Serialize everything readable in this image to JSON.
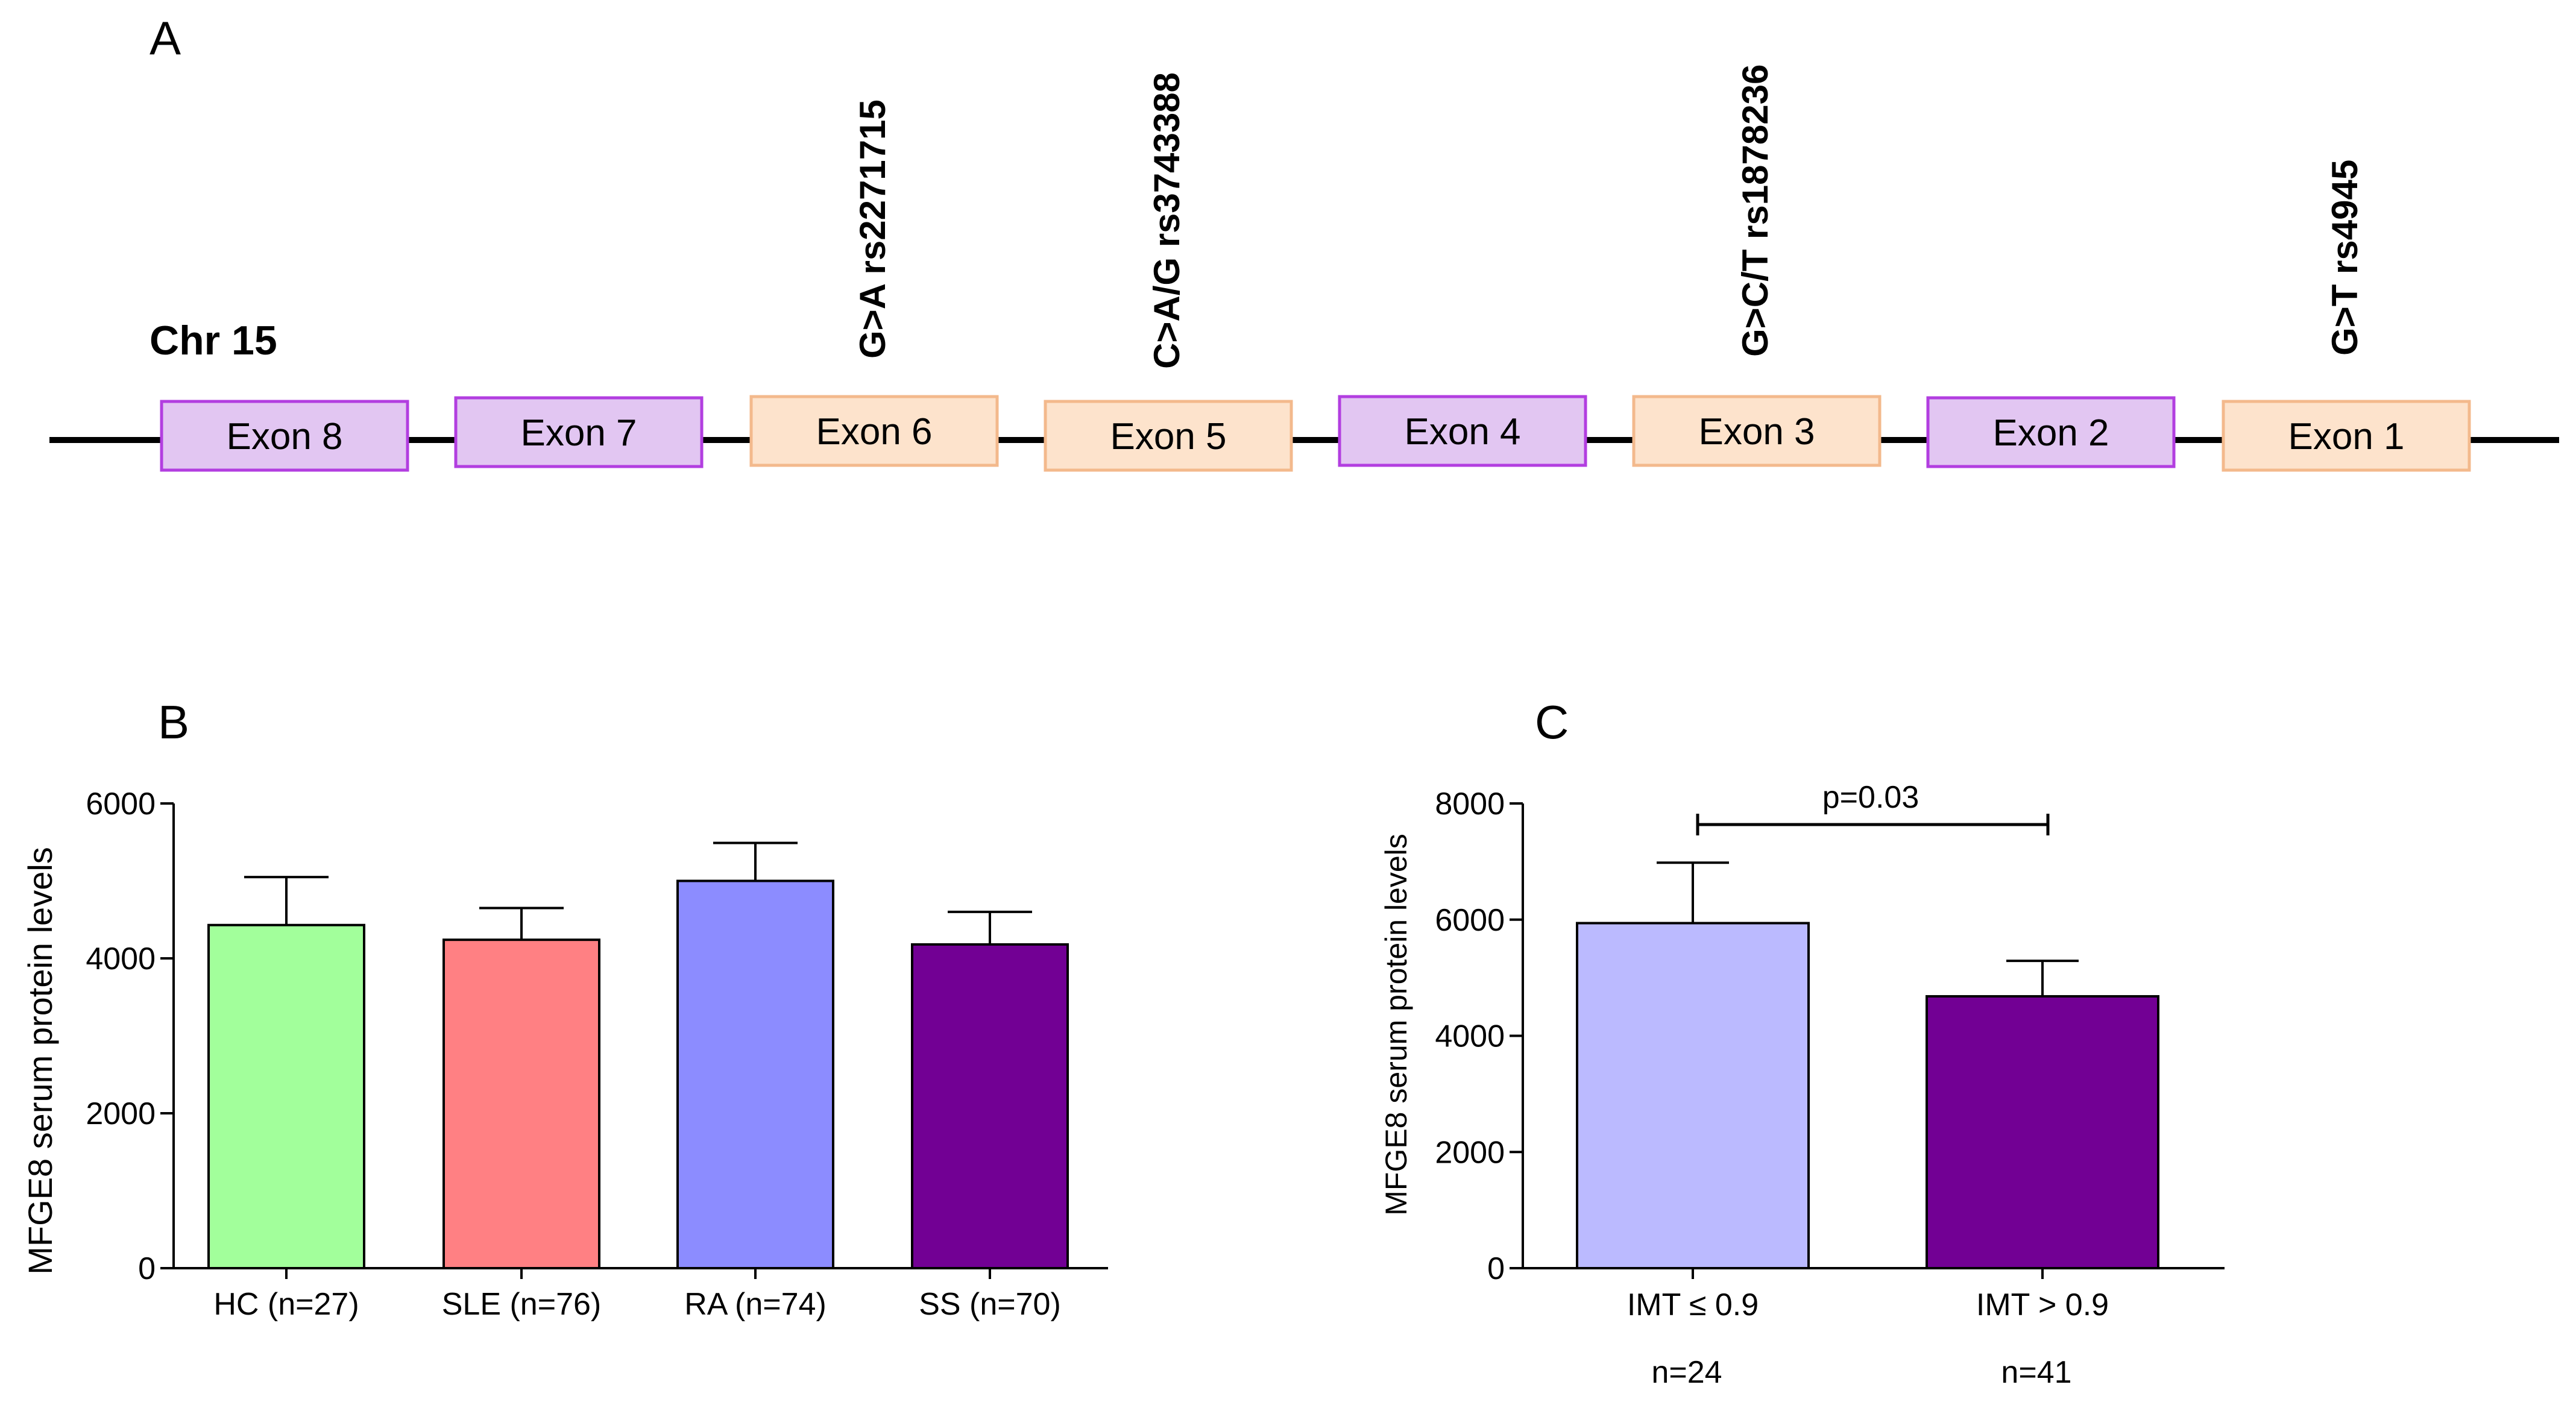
{
  "panels": {
    "a": {
      "letter": "A",
      "chromosome": "Chr 15",
      "exons": [
        {
          "label": "Exon 8",
          "kind": "purple"
        },
        {
          "label": "Exon 7",
          "kind": "purple"
        },
        {
          "label": "Exon 6",
          "kind": "orange"
        },
        {
          "label": "Exon 5",
          "kind": "orange"
        },
        {
          "label": "Exon 4",
          "kind": "purple"
        },
        {
          "label": "Exon 3",
          "kind": "orange"
        },
        {
          "label": "Exon 2",
          "kind": "purple"
        },
        {
          "label": "Exon 1",
          "kind": "orange"
        }
      ],
      "snps": [
        {
          "label": "G>A rs2271715",
          "exon": "Exon 6"
        },
        {
          "label": "C>A/G rs3743388",
          "exon": "Exon 5"
        },
        {
          "label": "G>C/T rs1878236",
          "exon": "Exon 3"
        },
        {
          "label": "G>T rs4945",
          "exon": "Exon 1"
        }
      ]
    },
    "b": {
      "letter": "B"
    },
    "c": {
      "letter": "C"
    }
  },
  "colors": {
    "purple_exon_fill": "#e2c6f2",
    "purple_exon_border": "#b23ee0",
    "orange_exon_fill": "#fde3cc",
    "orange_exon_border": "#f3b98c",
    "line": "#000000"
  },
  "chart_data": [
    {
      "type": "bar",
      "categories": [
        "HC (n=27)",
        "SLE (n=76)",
        "RA (n=74)",
        "SS (n=70)"
      ],
      "values": [
        4430,
        4240,
        5000,
        4180
      ],
      "error_upper": [
        5050,
        4650,
        5490,
        4600
      ],
      "colors": [
        "#a2ff9b",
        "#ff8083",
        "#8c8cff",
        "#720094"
      ],
      "title": "",
      "xlabel": "",
      "ylabel": "MFGE8  serum protein levels",
      "ylim": [
        0,
        6000
      ],
      "yticks": [
        0,
        2000,
        4000,
        6000
      ]
    },
    {
      "type": "bar",
      "categories": [
        "IMT ≤ 0.9",
        "IMT > 0.9"
      ],
      "sample_sizes": [
        "n=24",
        "n=41"
      ],
      "values": [
        5940,
        4680
      ],
      "error_upper": [
        6980,
        5290
      ],
      "colors": [
        "#bbbaff",
        "#720094"
      ],
      "title": "",
      "xlabel": "",
      "ylabel": "MFGE8  serum protein levels",
      "ylim": [
        0,
        8000
      ],
      "yticks": [
        0,
        2000,
        4000,
        6000,
        8000
      ],
      "annotation": "p=0.03"
    }
  ]
}
